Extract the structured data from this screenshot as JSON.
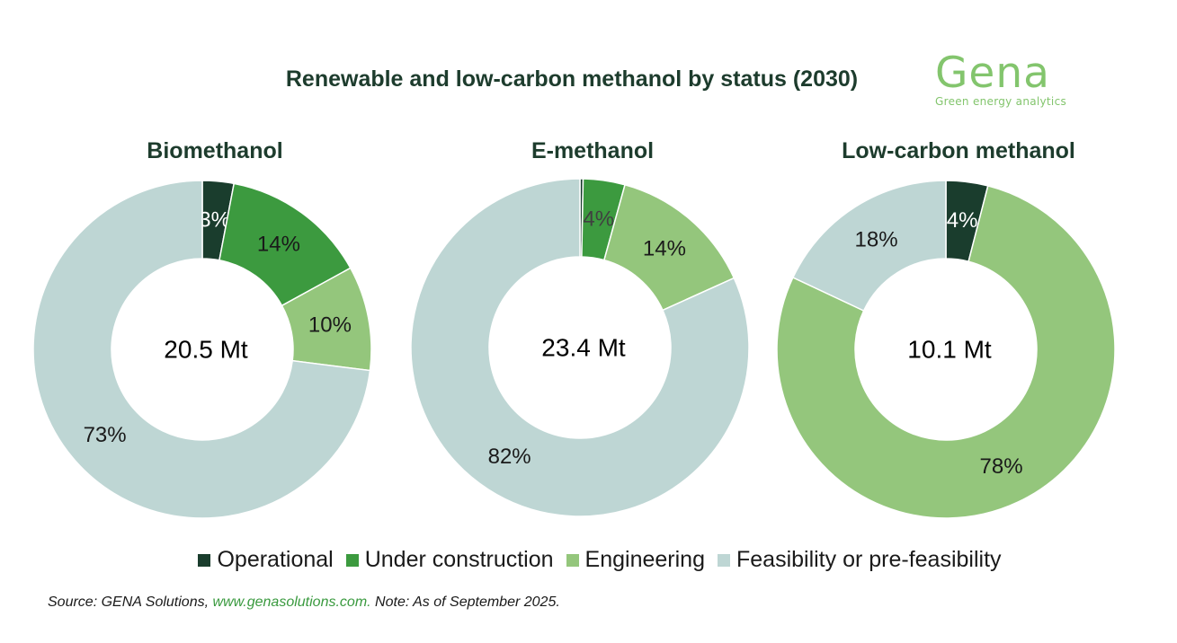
{
  "title": "Renewable and low-carbon methanol by status (2030)",
  "logo": {
    "word": "Gena",
    "tagline": "Green energy analytics"
  },
  "colors": {
    "Operational": "#1a3d2d",
    "Under construction": "#3c9a3f",
    "Engineering": "#94c67c",
    "Feasibility or pre-feasibility": "#bed6d4"
  },
  "chart_data": [
    {
      "type": "pie",
      "variant": "donut",
      "title": "Biomethanol",
      "center_label": "20.5 Mt",
      "categories": [
        "Operational",
        "Under construction",
        "Engineering",
        "Feasibility or pre-feasibility"
      ],
      "values": [
        3,
        14,
        10,
        73
      ],
      "labels": [
        "3%",
        "14%",
        "10%",
        "73%"
      ]
    },
    {
      "type": "pie",
      "variant": "donut",
      "title": "E-methanol",
      "center_label": "23.4 Mt",
      "categories": [
        "Operational",
        "Under construction",
        "Engineering",
        "Feasibility or pre-feasibility"
      ],
      "values": [
        0.3,
        4,
        14,
        82
      ],
      "labels": [
        "0.3%",
        "4%",
        "14%",
        "82%"
      ]
    },
    {
      "type": "pie",
      "variant": "donut",
      "title": "Low-carbon methanol",
      "center_label": "10.1 Mt",
      "categories": [
        "Operational",
        "Under construction",
        "Engineering",
        "Feasibility or pre-feasibility"
      ],
      "values": [
        4,
        0,
        78,
        18
      ],
      "labels": [
        "4%",
        "",
        "78%",
        "18%"
      ]
    }
  ],
  "legend": {
    "position": "bottom",
    "items": [
      "Operational",
      "Under construction",
      "Engineering",
      "Feasibility or pre-feasibility"
    ]
  },
  "source": {
    "prefix": "Source: GENA Solutions, ",
    "link": "www.genasolutions.com.",
    "suffix": " Note: As of September 2025."
  }
}
